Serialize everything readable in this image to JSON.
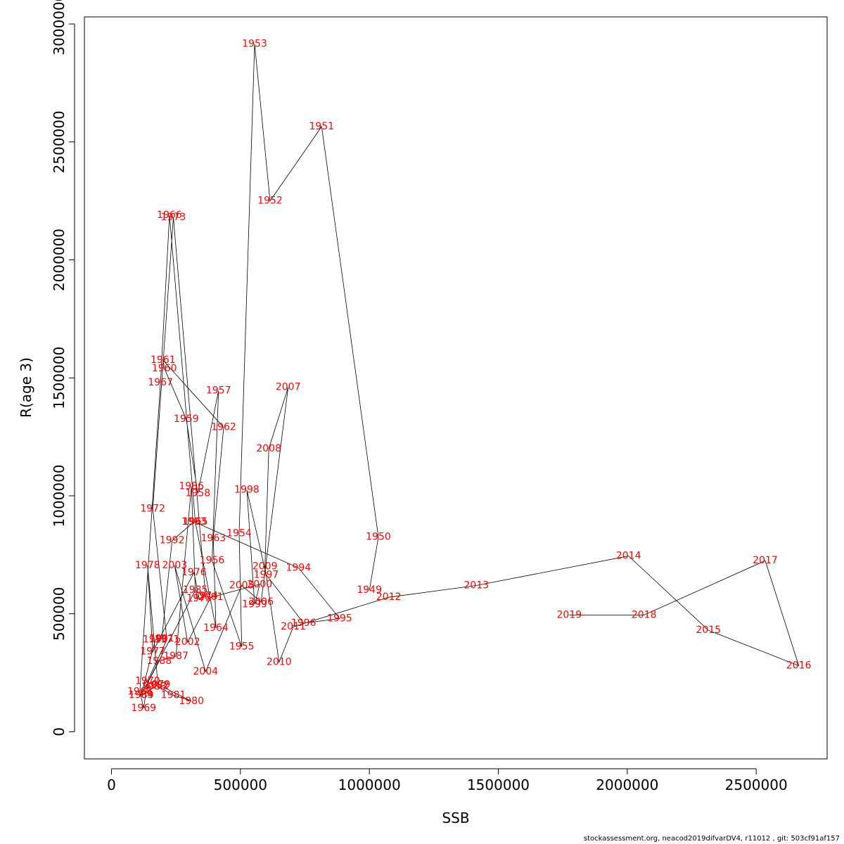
{
  "footer": "stockassessment.org, neacod2019difvarDV4, r11012 , git: 503cf91af157",
  "chart_data": {
    "type": "line",
    "xlabel": "SSB",
    "ylabel": "R(age 3)",
    "xlim": [
      -105000,
      2775000
    ],
    "ylim": [
      -115000,
      3030000
    ],
    "xticks": [
      0,
      500000,
      1000000,
      1500000,
      2000000,
      2500000
    ],
    "xtick_labels": [
      "0",
      "500000",
      "1000000",
      "1500000",
      "2000000",
      "2500000"
    ],
    "yticks": [
      0,
      500000,
      1000000,
      1500000,
      2000000,
      2500000,
      3000000
    ],
    "ytick_labels": [
      "0",
      "500000",
      "1000000",
      "1500000",
      "2000000",
      "2500000",
      "3000000"
    ],
    "line_color": "#000000",
    "label_color": "#ff0000",
    "series": [
      {
        "points": [
          {
            "label": "1949",
            "x": 1000000,
            "y": 600000
          },
          {
            "label": "1950",
            "x": 1035000,
            "y": 825000
          },
          {
            "label": "1951",
            "x": 815000,
            "y": 2565000
          },
          {
            "label": "1952",
            "x": 615000,
            "y": 2250000
          },
          {
            "label": "1953",
            "x": 555000,
            "y": 2915000
          },
          {
            "label": "1954",
            "x": 495000,
            "y": 840000
          },
          {
            "label": "1955",
            "x": 505000,
            "y": 360000
          },
          {
            "label": "1956",
            "x": 390000,
            "y": 725000
          },
          {
            "label": "1957",
            "x": 415000,
            "y": 1445000
          },
          {
            "label": "1958",
            "x": 335000,
            "y": 1010000
          },
          {
            "label": "1959",
            "x": 290000,
            "y": 1325000
          },
          {
            "label": "1960",
            "x": 205000,
            "y": 1540000
          },
          {
            "label": "1961",
            "x": 200000,
            "y": 1575000
          },
          {
            "label": "1962",
            "x": 435000,
            "y": 1290000
          },
          {
            "label": "1963",
            "x": 395000,
            "y": 820000
          },
          {
            "label": "1964",
            "x": 405000,
            "y": 440000
          },
          {
            "label": "1965",
            "x": 325000,
            "y": 890000
          },
          {
            "label": "1966",
            "x": 225000,
            "y": 2190000
          },
          {
            "label": "1967",
            "x": 190000,
            "y": 1480000
          },
          {
            "label": "1968",
            "x": 110000,
            "y": 170000
          },
          {
            "label": "1969",
            "x": 125000,
            "y": 100000
          },
          {
            "label": "1970",
            "x": 140000,
            "y": 215000
          },
          {
            "label": "1971",
            "x": 215000,
            "y": 390000
          },
          {
            "label": "1972",
            "x": 160000,
            "y": 945000
          },
          {
            "label": "1973",
            "x": 240000,
            "y": 2180000
          },
          {
            "label": "1974",
            "x": 365000,
            "y": 575000
          },
          {
            "label": "1975",
            "x": 340000,
            "y": 565000
          },
          {
            "label": "1976",
            "x": 320000,
            "y": 675000
          },
          {
            "label": "1977",
            "x": 160000,
            "y": 340000
          },
          {
            "label": "1978",
            "x": 140000,
            "y": 705000
          },
          {
            "label": "1979",
            "x": 180000,
            "y": 200000
          },
          {
            "label": "1980",
            "x": 310000,
            "y": 130000
          },
          {
            "label": "1981",
            "x": 240000,
            "y": 155000
          },
          {
            "label": "1982",
            "x": 175000,
            "y": 195000
          },
          {
            "label": "1983",
            "x": 165000,
            "y": 190000
          },
          {
            "label": "1984",
            "x": 115000,
            "y": 155000
          },
          {
            "label": "1985",
            "x": 325000,
            "y": 600000
          },
          {
            "label": "1986",
            "x": 310000,
            "y": 1040000
          },
          {
            "label": "1987",
            "x": 250000,
            "y": 320000
          },
          {
            "label": "1988",
            "x": 185000,
            "y": 300000
          },
          {
            "label": "1989",
            "x": 115000,
            "y": 155000
          },
          {
            "label": "1990",
            "x": 170000,
            "y": 390000
          },
          {
            "label": "1991",
            "x": 195000,
            "y": 395000
          },
          {
            "label": "1992",
            "x": 235000,
            "y": 810000
          },
          {
            "label": "1993",
            "x": 320000,
            "y": 890000
          },
          {
            "label": "1994",
            "x": 725000,
            "y": 695000
          },
          {
            "label": "1995",
            "x": 885000,
            "y": 480000
          },
          {
            "label": "1996",
            "x": 745000,
            "y": 460000
          },
          {
            "label": "1997",
            "x": 600000,
            "y": 665000
          },
          {
            "label": "1998",
            "x": 525000,
            "y": 1025000
          },
          {
            "label": "1999",
            "x": 555000,
            "y": 540000
          },
          {
            "label": "2000",
            "x": 575000,
            "y": 625000
          },
          {
            "label": "2001",
            "x": 385000,
            "y": 570000
          },
          {
            "label": "2002",
            "x": 295000,
            "y": 380000
          },
          {
            "label": "2003",
            "x": 245000,
            "y": 705000
          },
          {
            "label": "2004",
            "x": 365000,
            "y": 255000
          },
          {
            "label": "2005",
            "x": 505000,
            "y": 620000
          },
          {
            "label": "2006",
            "x": 580000,
            "y": 550000
          },
          {
            "label": "2007",
            "x": 685000,
            "y": 1460000
          },
          {
            "label": "2008",
            "x": 610000,
            "y": 1200000
          },
          {
            "label": "2009",
            "x": 595000,
            "y": 700000
          },
          {
            "label": "2010",
            "x": 650000,
            "y": 295000
          },
          {
            "label": "2011",
            "x": 705000,
            "y": 445000
          },
          {
            "label": "2012",
            "x": 1075000,
            "y": 570000
          },
          {
            "label": "2013",
            "x": 1415000,
            "y": 620000
          },
          {
            "label": "2014",
            "x": 2005000,
            "y": 745000
          },
          {
            "label": "2015",
            "x": 2315000,
            "y": 430000
          },
          {
            "label": "2016",
            "x": 2665000,
            "y": 280000
          },
          {
            "label": "2017",
            "x": 2535000,
            "y": 725000
          },
          {
            "label": "2018",
            "x": 2065000,
            "y": 495000
          },
          {
            "label": "2019",
            "x": 1775000,
            "y": 495000
          }
        ]
      }
    ]
  }
}
